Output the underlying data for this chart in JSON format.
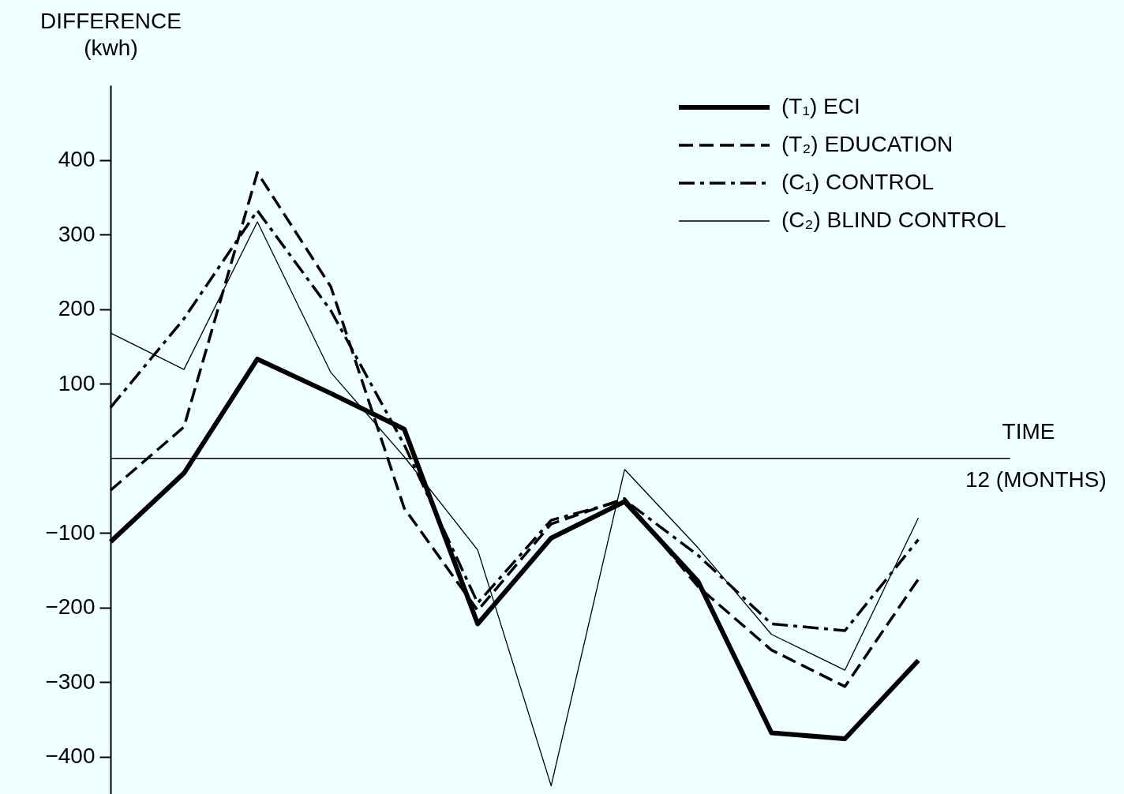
{
  "chart_data": {
    "type": "line",
    "ylabel": "DIFFERENCE (kwh)",
    "xlabel": "TIME",
    "categories": [
      null,
      null,
      null,
      null,
      null,
      null,
      null,
      null,
      null,
      null,
      null,
      null
    ],
    "series": [
      {
        "name": "(T₁) ECI",
        "color": "#000000",
        "line_style": "solid",
        "values": [
          -112,
          -20,
          133,
          87,
          39,
          -222,
          -107,
          -58,
          -165,
          -368,
          -376,
          -271
        ]
      },
      {
        "name": "(T₂) EDUCATION",
        "color": "#000000",
        "line_style": "dashed",
        "values": [
          -43,
          42,
          383,
          230,
          -67,
          -204,
          -88,
          -54,
          -172,
          -257,
          -306,
          -162
        ]
      },
      {
        "name": "(C₁) CONTROL",
        "color": "#000000",
        "line_style": "dashdot",
        "values": [
          68,
          187,
          332,
          198,
          18,
          -194,
          -83,
          -56,
          -130,
          -222,
          -231,
          -109
        ]
      },
      {
        "name": "(C₂) BLIND CONTROL",
        "color": "#000000",
        "line_style": "solid",
        "values": [
          168,
          119,
          317,
          115,
          2,
          -123,
          -439,
          -15,
          -120,
          -236,
          -284,
          -80
        ]
      }
    ],
    "ylim": [
      -450,
      500
    ],
    "yticks": [
      -400,
      -300,
      -200,
      -100,
      100,
      200,
      300,
      400
    ],
    "ref_lines": [
      {
        "axis": "y",
        "value": 0
      }
    ],
    "annotations": [
      "12 (MONTHS)"
    ],
    "grid": false,
    "legend": "top right"
  }
}
